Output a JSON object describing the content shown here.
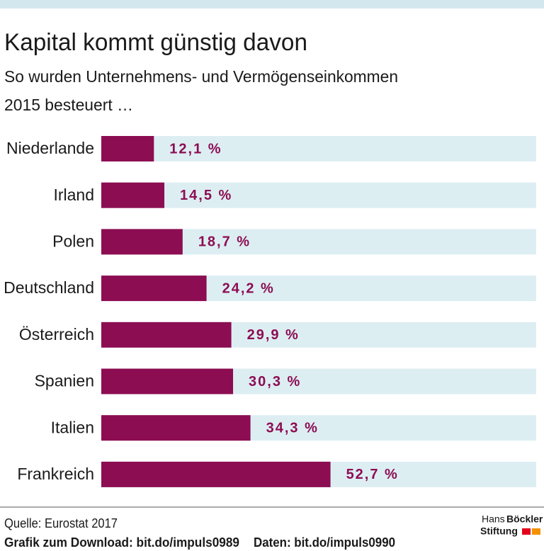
{
  "chart_data": {
    "type": "bar",
    "orientation": "horizontal",
    "title": "Kapital kommt günstig davon",
    "subtitle": [
      "So wurden Unternehmens- und Vermögenseinkommen",
      "2015 besteuert …"
    ],
    "categories": [
      "Niederlande",
      "Irland",
      "Polen",
      "Deutschland",
      "Österreich",
      "Spanien",
      "Italien",
      "Frankreich"
    ],
    "values": [
      12.1,
      14.5,
      18.7,
      24.2,
      29.9,
      30.3,
      34.3,
      52.7
    ],
    "value_labels": [
      "12,1 %",
      "14,5 %",
      "18,7 %",
      "24,2 %",
      "29,9 %",
      "30,3 %",
      "34,3 %",
      "52,7 %"
    ],
    "color": "#8c0d52",
    "track_color": "#ddeef3",
    "xlim": [
      0,
      100
    ],
    "source": "Quelle: Eurostat 2017",
    "download": "Grafik zum Download: bit.do/impuls0989",
    "data_link": "Daten: bit.do/impuls0990",
    "logo": [
      "Hans",
      "Böckler",
      "Stiftung"
    ]
  }
}
